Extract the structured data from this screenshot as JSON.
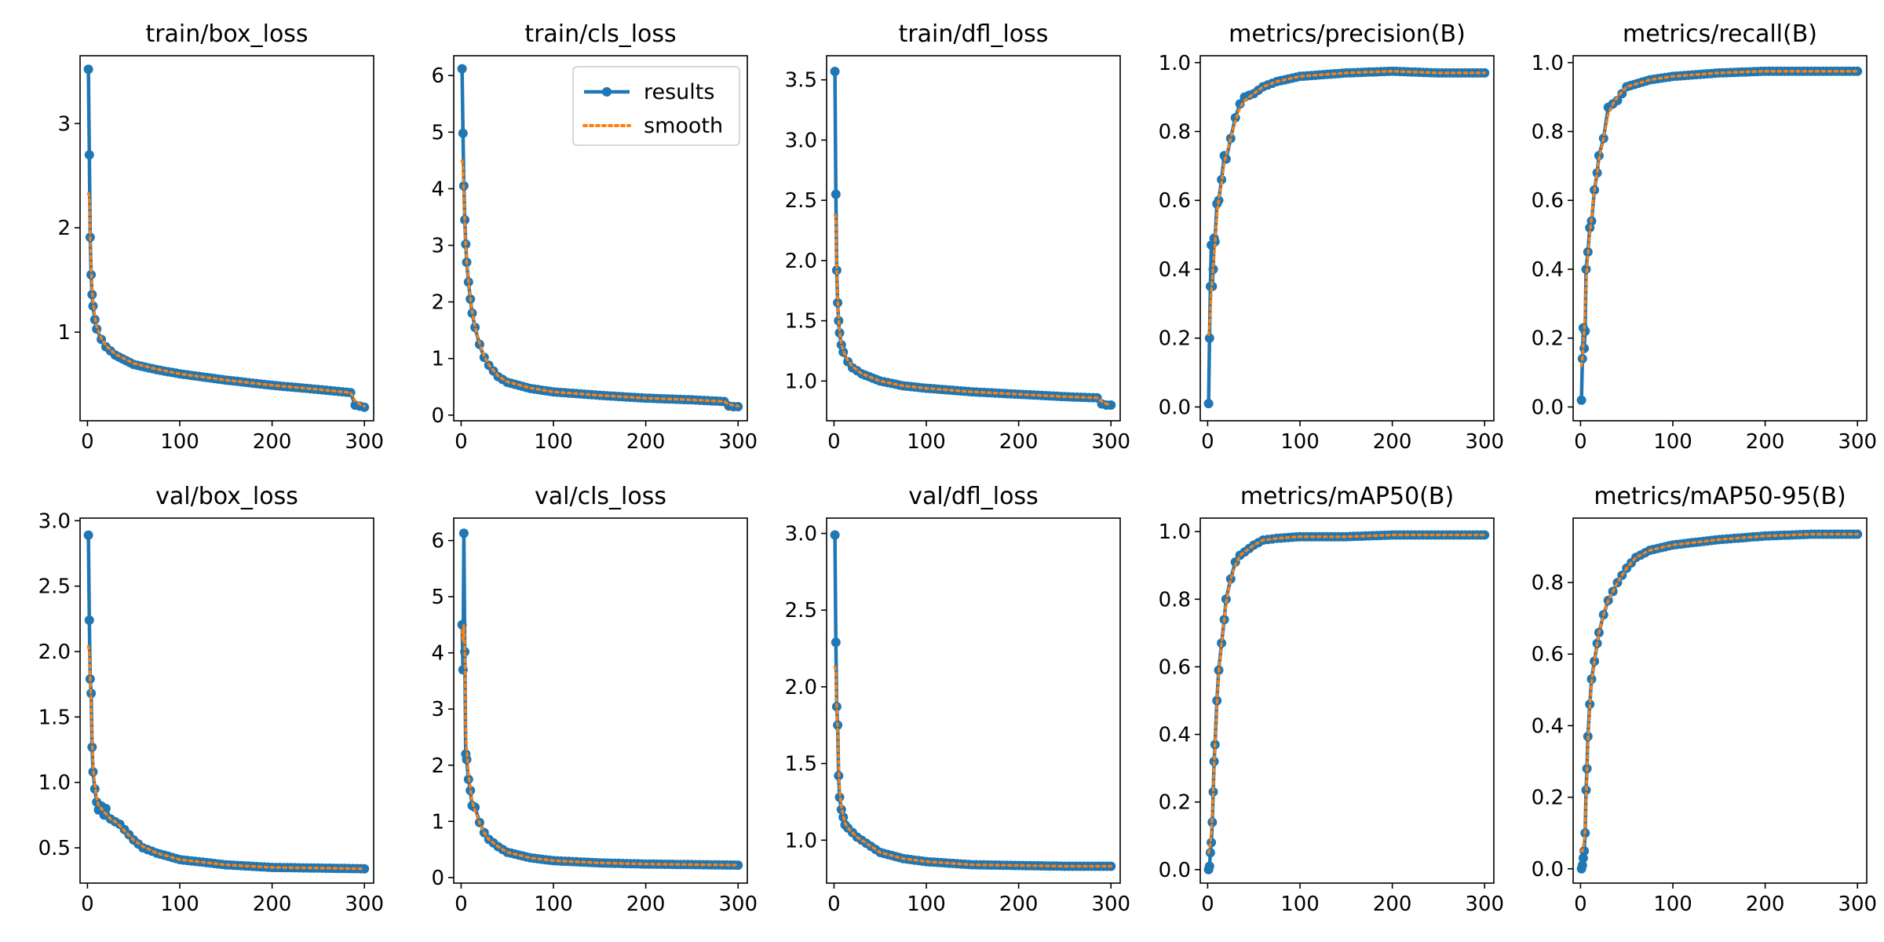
{
  "colors": {
    "results": "#1f77b4",
    "smooth": "#ff7f0e"
  },
  "legend": {
    "results_label": "results",
    "smooth_label": "smooth",
    "placement": "top-right",
    "in_panel": "train/cls_loss"
  },
  "chart_data": [
    {
      "type": "line",
      "title": "train/box_loss",
      "xlim": [
        -8,
        310
      ],
      "ylim": [
        0.15,
        3.65
      ],
      "xticks": [
        0,
        100,
        200,
        300
      ],
      "yticks": [
        1,
        2,
        3
      ],
      "x": [
        1,
        2,
        3,
        4,
        5,
        6,
        8,
        10,
        15,
        20,
        30,
        50,
        75,
        100,
        150,
        200,
        250,
        285,
        290,
        295,
        300
      ],
      "y": [
        3.52,
        2.7,
        1.91,
        1.55,
        1.36,
        1.25,
        1.12,
        1.03,
        0.93,
        0.86,
        0.78,
        0.69,
        0.64,
        0.6,
        0.54,
        0.49,
        0.45,
        0.42,
        0.3,
        0.29,
        0.28
      ],
      "smooth": [
        2.33,
        2.3,
        1.9,
        1.62,
        1.42,
        1.3,
        1.15,
        1.05,
        0.94,
        0.87,
        0.79,
        0.7,
        0.645,
        0.6,
        0.54,
        0.49,
        0.45,
        0.42,
        0.34,
        0.31,
        0.29
      ]
    },
    {
      "type": "line",
      "title": "train/cls_loss",
      "xlim": [
        -8,
        310
      ],
      "ylim": [
        -0.1,
        6.35
      ],
      "xticks": [
        0,
        100,
        200,
        300
      ],
      "yticks": [
        0,
        1,
        2,
        3,
        4,
        5,
        6
      ],
      "x": [
        1,
        2,
        3,
        4,
        5,
        6,
        8,
        10,
        12,
        15,
        20,
        25,
        30,
        40,
        50,
        75,
        100,
        150,
        200,
        250,
        285,
        290,
        295,
        300
      ],
      "y": [
        6.12,
        4.98,
        4.05,
        3.45,
        3.02,
        2.7,
        2.35,
        2.05,
        1.8,
        1.55,
        1.25,
        1.02,
        0.88,
        0.68,
        0.58,
        0.47,
        0.41,
        0.35,
        0.3,
        0.27,
        0.24,
        0.16,
        0.15,
        0.15
      ],
      "smooth": [
        4.5,
        4.4,
        3.9,
        3.4,
        3.0,
        2.72,
        2.37,
        2.07,
        1.82,
        1.57,
        1.27,
        1.04,
        0.89,
        0.69,
        0.59,
        0.48,
        0.41,
        0.35,
        0.3,
        0.27,
        0.24,
        0.19,
        0.17,
        0.16
      ]
    },
    {
      "type": "line",
      "title": "train/dfl_loss",
      "xlim": [
        -8,
        310
      ],
      "ylim": [
        0.67,
        3.7
      ],
      "xticks": [
        0,
        100,
        200,
        300
      ],
      "yticks": [
        1.0,
        1.5,
        2.0,
        2.5,
        3.0,
        3.5
      ],
      "x": [
        1,
        2,
        3,
        4,
        5,
        6,
        8,
        10,
        15,
        20,
        30,
        50,
        75,
        100,
        150,
        200,
        250,
        285,
        290,
        295,
        300
      ],
      "y": [
        3.57,
        2.55,
        1.92,
        1.65,
        1.5,
        1.4,
        1.3,
        1.24,
        1.16,
        1.11,
        1.06,
        1.0,
        0.96,
        0.94,
        0.91,
        0.89,
        0.87,
        0.86,
        0.81,
        0.8,
        0.8
      ],
      "smooth": [
        2.38,
        2.35,
        1.95,
        1.68,
        1.52,
        1.42,
        1.31,
        1.25,
        1.17,
        1.12,
        1.06,
        1.0,
        0.96,
        0.94,
        0.91,
        0.89,
        0.87,
        0.86,
        0.83,
        0.81,
        0.8
      ]
    },
    {
      "type": "line",
      "title": "metrics/precision(B)",
      "xlim": [
        -8,
        310
      ],
      "ylim": [
        -0.04,
        1.02
      ],
      "xticks": [
        0,
        100,
        200,
        300
      ],
      "yticks": [
        0.0,
        0.2,
        0.4,
        0.6,
        0.8,
        1.0
      ],
      "x": [
        1,
        2,
        3,
        4,
        5,
        6,
        7,
        8,
        10,
        12,
        15,
        18,
        20,
        25,
        30,
        35,
        40,
        50,
        60,
        75,
        100,
        150,
        200,
        250,
        300
      ],
      "y": [
        0.01,
        0.2,
        0.35,
        0.47,
        0.35,
        0.4,
        0.49,
        0.48,
        0.59,
        0.6,
        0.66,
        0.73,
        0.72,
        0.78,
        0.84,
        0.88,
        0.9,
        0.91,
        0.93,
        0.945,
        0.96,
        0.97,
        0.975,
        0.97,
        0.97
      ],
      "smooth": [
        0.21,
        0.23,
        0.28,
        0.33,
        0.37,
        0.41,
        0.44,
        0.47,
        0.56,
        0.6,
        0.65,
        0.71,
        0.73,
        0.78,
        0.83,
        0.87,
        0.89,
        0.91,
        0.93,
        0.945,
        0.96,
        0.97,
        0.975,
        0.97,
        0.97
      ]
    },
    {
      "type": "line",
      "title": "metrics/recall(B)",
      "xlim": [
        -8,
        310
      ],
      "ylim": [
        -0.04,
        1.02
      ],
      "xticks": [
        0,
        100,
        200,
        300
      ],
      "yticks": [
        0.0,
        0.2,
        0.4,
        0.6,
        0.8,
        1.0
      ],
      "x": [
        1,
        2,
        3,
        4,
        5,
        6,
        8,
        10,
        12,
        15,
        18,
        20,
        25,
        30,
        35,
        40,
        50,
        75,
        100,
        150,
        200,
        250,
        300
      ],
      "y": [
        0.02,
        0.14,
        0.23,
        0.17,
        0.22,
        0.4,
        0.45,
        0.52,
        0.54,
        0.63,
        0.68,
        0.73,
        0.78,
        0.87,
        0.88,
        0.89,
        0.93,
        0.95,
        0.96,
        0.97,
        0.975,
        0.975,
        0.975
      ],
      "smooth": [
        0.12,
        0.14,
        0.18,
        0.22,
        0.28,
        0.36,
        0.44,
        0.5,
        0.55,
        0.63,
        0.68,
        0.72,
        0.78,
        0.85,
        0.88,
        0.9,
        0.93,
        0.95,
        0.96,
        0.97,
        0.975,
        0.975,
        0.975
      ]
    },
    {
      "type": "line",
      "title": "val/box_loss",
      "xlim": [
        -8,
        310
      ],
      "ylim": [
        0.23,
        3.02
      ],
      "xticks": [
        0,
        100,
        200,
        300
      ],
      "yticks": [
        0.5,
        1.0,
        1.5,
        2.0,
        2.5,
        3.0
      ],
      "x": [
        1,
        2,
        3,
        4,
        5,
        6,
        8,
        10,
        12,
        15,
        18,
        20,
        25,
        30,
        35,
        40,
        50,
        60,
        75,
        100,
        150,
        200,
        250,
        300
      ],
      "y": [
        2.89,
        2.24,
        1.79,
        1.68,
        1.27,
        1.08,
        0.95,
        0.85,
        0.79,
        0.82,
        0.75,
        0.8,
        0.72,
        0.7,
        0.68,
        0.64,
        0.56,
        0.5,
        0.46,
        0.41,
        0.37,
        0.35,
        0.345,
        0.34
      ],
      "smooth": [
        2.04,
        2.0,
        1.78,
        1.6,
        1.35,
        1.12,
        0.98,
        0.88,
        0.82,
        0.8,
        0.77,
        0.76,
        0.72,
        0.7,
        0.67,
        0.63,
        0.56,
        0.51,
        0.46,
        0.41,
        0.37,
        0.35,
        0.345,
        0.34
      ]
    },
    {
      "type": "line",
      "title": "val/cls_loss",
      "xlim": [
        -8,
        310
      ],
      "ylim": [
        -0.1,
        6.4
      ],
      "xticks": [
        0,
        100,
        200,
        300
      ],
      "yticks": [
        0,
        1,
        2,
        3,
        4,
        5,
        6
      ],
      "x": [
        1,
        2,
        3,
        4,
        5,
        6,
        8,
        10,
        12,
        15,
        20,
        25,
        30,
        40,
        50,
        75,
        100,
        150,
        200,
        250,
        300
      ],
      "y": [
        4.5,
        3.7,
        6.13,
        4.02,
        2.2,
        2.1,
        1.75,
        1.55,
        1.28,
        1.25,
        0.98,
        0.8,
        0.68,
        0.55,
        0.45,
        0.35,
        0.3,
        0.26,
        0.24,
        0.23,
        0.22
      ],
      "smooth": [
        4.4,
        4.2,
        4.5,
        4.1,
        2.6,
        2.3,
        1.85,
        1.6,
        1.35,
        1.2,
        0.97,
        0.8,
        0.68,
        0.55,
        0.45,
        0.35,
        0.3,
        0.26,
        0.24,
        0.23,
        0.22
      ]
    },
    {
      "type": "line",
      "title": "val/dfl_loss",
      "xlim": [
        -8,
        310
      ],
      "ylim": [
        0.72,
        3.1
      ],
      "xticks": [
        0,
        100,
        200,
        300
      ],
      "yticks": [
        1.0,
        1.5,
        2.0,
        2.5,
        3.0
      ],
      "x": [
        1,
        2,
        3,
        4,
        5,
        6,
        8,
        10,
        12,
        15,
        20,
        25,
        30,
        40,
        50,
        75,
        100,
        150,
        200,
        250,
        300
      ],
      "y": [
        2.99,
        2.29,
        1.87,
        1.75,
        1.42,
        1.28,
        1.2,
        1.15,
        1.1,
        1.08,
        1.05,
        1.02,
        1.0,
        0.96,
        0.92,
        0.88,
        0.86,
        0.84,
        0.835,
        0.83,
        0.83
      ],
      "smooth": [
        2.13,
        2.1,
        1.88,
        1.72,
        1.5,
        1.33,
        1.22,
        1.16,
        1.11,
        1.08,
        1.05,
        1.02,
        1.0,
        0.96,
        0.92,
        0.88,
        0.86,
        0.84,
        0.835,
        0.83,
        0.83
      ]
    },
    {
      "type": "line",
      "title": "metrics/mAP50(B)",
      "xlim": [
        -8,
        310
      ],
      "ylim": [
        -0.04,
        1.04
      ],
      "xticks": [
        0,
        100,
        200,
        300
      ],
      "yticks": [
        0.0,
        0.2,
        0.4,
        0.6,
        0.8,
        1.0
      ],
      "x": [
        1,
        2,
        3,
        4,
        5,
        6,
        7,
        8,
        10,
        12,
        15,
        18,
        20,
        25,
        30,
        35,
        40,
        50,
        60,
        75,
        100,
        150,
        200,
        250,
        300
      ],
      "y": [
        0.0,
        0.01,
        0.05,
        0.08,
        0.14,
        0.23,
        0.32,
        0.37,
        0.5,
        0.59,
        0.67,
        0.74,
        0.8,
        0.86,
        0.91,
        0.93,
        0.94,
        0.96,
        0.975,
        0.98,
        0.985,
        0.985,
        0.99,
        0.99,
        0.99
      ],
      "smooth": [
        0.05,
        0.06,
        0.08,
        0.11,
        0.16,
        0.23,
        0.31,
        0.37,
        0.49,
        0.58,
        0.67,
        0.74,
        0.79,
        0.86,
        0.9,
        0.93,
        0.94,
        0.96,
        0.975,
        0.98,
        0.985,
        0.985,
        0.99,
        0.99,
        0.99
      ]
    },
    {
      "type": "line",
      "title": "metrics/mAP50-95(B)",
      "xlim": [
        -8,
        310
      ],
      "ylim": [
        -0.04,
        0.98
      ],
      "xticks": [
        0,
        100,
        200,
        300
      ],
      "yticks": [
        0.0,
        0.2,
        0.4,
        0.6,
        0.8
      ],
      "x": [
        1,
        2,
        3,
        4,
        5,
        6,
        7,
        8,
        10,
        12,
        15,
        18,
        20,
        25,
        30,
        40,
        50,
        60,
        75,
        100,
        150,
        200,
        250,
        300
      ],
      "y": [
        0.0,
        0.01,
        0.03,
        0.05,
        0.1,
        0.22,
        0.28,
        0.37,
        0.46,
        0.53,
        0.58,
        0.63,
        0.66,
        0.71,
        0.75,
        0.8,
        0.84,
        0.87,
        0.89,
        0.905,
        0.92,
        0.93,
        0.935,
        0.935
      ],
      "smooth": [
        0.05,
        0.05,
        0.06,
        0.08,
        0.11,
        0.19,
        0.27,
        0.35,
        0.45,
        0.52,
        0.58,
        0.63,
        0.66,
        0.71,
        0.75,
        0.8,
        0.84,
        0.87,
        0.89,
        0.905,
        0.92,
        0.93,
        0.935,
        0.935
      ]
    }
  ]
}
